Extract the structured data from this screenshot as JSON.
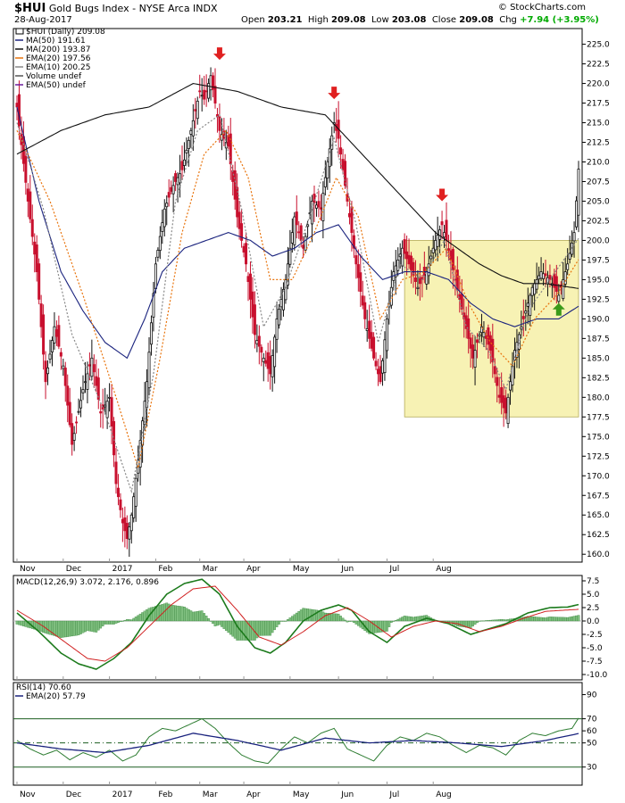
{
  "header": {
    "symbol": "$HUI",
    "name": "Gold Bugs Index - NYSE Arca INDX",
    "date": "28-Aug-2017",
    "open_label": "Open",
    "open": "203.21",
    "high_label": "High",
    "high": "209.08",
    "low_label": "Low",
    "low": "203.08",
    "close_label": "Close",
    "close": "209.08",
    "chg_label": "Chg",
    "chg": "+7.94 (+3.95%)",
    "copyright": "© StockCharts.com"
  },
  "colors": {
    "up": "#2e7d32",
    "down": "#c8102e",
    "ma50": "#1a237e",
    "ma200": "#111111",
    "ema20": "#e8730c",
    "ema10": "#888888",
    "highlight": "#f7f2b4",
    "arrow_red": "#e02020",
    "arrow_green": "#3a9a1a"
  },
  "chart_data": [
    {
      "type": "candlestick",
      "title": "$HUI (Daily) 209.08",
      "legend": [
        {
          "label": "$HUI (Daily) 209.08"
        },
        {
          "label": "MA(50) 191.61"
        },
        {
          "label": "MA(200) 193.87"
        },
        {
          "label": "EMA(20) 197.56"
        },
        {
          "label": "EMA(10) 200.25"
        },
        {
          "label": "Volume undef"
        },
        {
          "label": "EMA(50) undef"
        }
      ],
      "yticks": [
        160,
        162.5,
        165,
        167.5,
        170,
        172.5,
        175,
        177.5,
        180,
        182.5,
        185,
        187.5,
        190,
        192.5,
        195,
        197.5,
        200,
        202.5,
        205,
        207.5,
        210,
        212.5,
        215,
        217.5,
        220,
        222.5,
        225
      ],
      "ylim": [
        159,
        227
      ],
      "xticks": [
        "Nov",
        "Dec",
        "2017",
        "Feb",
        "Mar",
        "Apr",
        "May",
        "Jun",
        "Jul",
        "Aug"
      ],
      "close_keys": [
        [
          0,
          217
        ],
        [
          5,
          205
        ],
        [
          9,
          196
        ],
        [
          13,
          182
        ],
        [
          17,
          189
        ],
        [
          21,
          184
        ],
        [
          25,
          174
        ],
        [
          30,
          181
        ],
        [
          34,
          185
        ],
        [
          38,
          178
        ],
        [
          42,
          180
        ],
        [
          45,
          169
        ],
        [
          48,
          164
        ],
        [
          50,
          162
        ],
        [
          52,
          165
        ],
        [
          55,
          172
        ],
        [
          59,
          182
        ],
        [
          63,
          197
        ],
        [
          67,
          204
        ],
        [
          71,
          207
        ],
        [
          75,
          209
        ],
        [
          79,
          214
        ],
        [
          83,
          219
        ],
        [
          85,
          218
        ],
        [
          88,
          221
        ],
        [
          92,
          214
        ],
        [
          96,
          212
        ],
        [
          100,
          203
        ],
        [
          104,
          197
        ],
        [
          108,
          188
        ],
        [
          112,
          185
        ],
        [
          115,
          183
        ],
        [
          118,
          190
        ],
        [
          122,
          195
        ],
        [
          126,
          203
        ],
        [
          130,
          199
        ],
        [
          134,
          205
        ],
        [
          138,
          204
        ],
        [
          141,
          210
        ],
        [
          144,
          215
        ],
        [
          146,
          213
        ],
        [
          150,
          205
        ],
        [
          154,
          197
        ],
        [
          158,
          190
        ],
        [
          162,
          185
        ],
        [
          165,
          182
        ],
        [
          168,
          190
        ],
        [
          171,
          196
        ],
        [
          175,
          199
        ],
        [
          178,
          197
        ],
        [
          182,
          194
        ],
        [
          186,
          196
        ],
        [
          190,
          200
        ],
        [
          193,
          202
        ],
        [
          195,
          200
        ],
        [
          199,
          195
        ],
        [
          203,
          190
        ],
        [
          207,
          185
        ],
        [
          211,
          189
        ],
        [
          215,
          186
        ],
        [
          219,
          180
        ],
        [
          222,
          178
        ],
        [
          226,
          186
        ],
        [
          230,
          190
        ],
        [
          234,
          194
        ],
        [
          238,
          196
        ],
        [
          242,
          195
        ],
        [
          246,
          193
        ],
        [
          250,
          197
        ],
        [
          253,
          201
        ],
        [
          255,
          209.08
        ]
      ],
      "ma50_keys": [
        [
          0,
          217
        ],
        [
          10,
          205
        ],
        [
          20,
          196
        ],
        [
          30,
          191
        ],
        [
          40,
          187
        ],
        [
          50,
          185
        ],
        [
          58,
          190
        ],
        [
          66,
          196
        ],
        [
          76,
          199
        ],
        [
          86,
          200
        ],
        [
          96,
          201
        ],
        [
          106,
          200
        ],
        [
          116,
          198
        ],
        [
          126,
          199
        ],
        [
          136,
          201
        ],
        [
          146,
          202
        ],
        [
          156,
          198
        ],
        [
          166,
          195
        ],
        [
          176,
          196
        ],
        [
          186,
          196
        ],
        [
          196,
          195
        ],
        [
          206,
          192
        ],
        [
          216,
          190
        ],
        [
          226,
          189
        ],
        [
          236,
          190
        ],
        [
          246,
          190
        ],
        [
          255,
          191.61
        ]
      ],
      "ma200_keys": [
        [
          0,
          211
        ],
        [
          20,
          214
        ],
        [
          40,
          216
        ],
        [
          60,
          217
        ],
        [
          80,
          220
        ],
        [
          100,
          219
        ],
        [
          120,
          217
        ],
        [
          140,
          216
        ],
        [
          150,
          213
        ],
        [
          160,
          210
        ],
        [
          170,
          207
        ],
        [
          180,
          204
        ],
        [
          190,
          201
        ],
        [
          200,
          199
        ],
        [
          210,
          197
        ],
        [
          220,
          195.5
        ],
        [
          230,
          194.5
        ],
        [
          240,
          194.5
        ],
        [
          255,
          193.87
        ]
      ],
      "ema20_keys": [
        [
          0,
          214
        ],
        [
          15,
          205
        ],
        [
          30,
          193
        ],
        [
          45,
          180
        ],
        [
          55,
          171
        ],
        [
          65,
          185
        ],
        [
          75,
          201
        ],
        [
          85,
          211
        ],
        [
          95,
          214
        ],
        [
          105,
          208
        ],
        [
          115,
          195
        ],
        [
          125,
          195
        ],
        [
          135,
          201
        ],
        [
          145,
          208
        ],
        [
          155,
          203
        ],
        [
          165,
          190
        ],
        [
          175,
          195
        ],
        [
          185,
          196
        ],
        [
          195,
          199
        ],
        [
          205,
          192
        ],
        [
          215,
          187
        ],
        [
          225,
          184
        ],
        [
          235,
          190
        ],
        [
          245,
          193
        ],
        [
          255,
          197.56
        ]
      ],
      "ema10_keys": [
        [
          0,
          215
        ],
        [
          12,
          204
        ],
        [
          25,
          188
        ],
        [
          40,
          178
        ],
        [
          52,
          168
        ],
        [
          62,
          183
        ],
        [
          72,
          205
        ],
        [
          82,
          214
        ],
        [
          92,
          216
        ],
        [
          102,
          204
        ],
        [
          112,
          189
        ],
        [
          122,
          194
        ],
        [
          134,
          204
        ],
        [
          144,
          213
        ],
        [
          154,
          202
        ],
        [
          164,
          187
        ],
        [
          174,
          197
        ],
        [
          184,
          195
        ],
        [
          194,
          200
        ],
        [
          204,
          189
        ],
        [
          214,
          186
        ],
        [
          222,
          181
        ],
        [
          232,
          191
        ],
        [
          242,
          195
        ],
        [
          255,
          200.25
        ]
      ],
      "annotations": [
        {
          "type": "highlight-box",
          "x": [
            176,
            255
          ],
          "y": [
            177.5,
            200
          ]
        },
        {
          "type": "arrow-down",
          "x": 92,
          "y": 223
        },
        {
          "type": "arrow-down",
          "x": 144,
          "y": 218
        },
        {
          "type": "arrow-down",
          "x": 193,
          "y": 205
        },
        {
          "type": "arrow-up",
          "x": 246,
          "y": 192
        }
      ]
    },
    {
      "type": "macd",
      "title": "MACD(12,26,9) 3.072, 2.176, 0.896",
      "legend": [
        {
          "label": "MACD(12,26,9) 3.072, 2.176, 0.896"
        }
      ],
      "yticks": [
        -10.0,
        -7.5,
        -5.0,
        -2.5,
        0.0,
        2.5,
        5.0,
        7.5
      ],
      "ylim": [
        -11,
        8.5
      ],
      "macd_keys": [
        [
          0,
          1.5
        ],
        [
          10,
          -2
        ],
        [
          20,
          -6
        ],
        [
          28,
          -8
        ],
        [
          36,
          -9
        ],
        [
          44,
          -7
        ],
        [
          52,
          -4
        ],
        [
          60,
          1
        ],
        [
          68,
          5
        ],
        [
          76,
          7
        ],
        [
          84,
          7.8
        ],
        [
          92,
          5
        ],
        [
          100,
          -1
        ],
        [
          108,
          -5
        ],
        [
          115,
          -6
        ],
        [
          122,
          -4
        ],
        [
          130,
          0
        ],
        [
          138,
          2
        ],
        [
          146,
          3
        ],
        [
          152,
          2
        ],
        [
          160,
          -2
        ],
        [
          168,
          -4
        ],
        [
          176,
          -1
        ],
        [
          186,
          0.5
        ],
        [
          196,
          -0.5
        ],
        [
          206,
          -2.5
        ],
        [
          214,
          -1.5
        ],
        [
          222,
          -0.5
        ],
        [
          232,
          1.5
        ],
        [
          242,
          2.5
        ],
        [
          250,
          2.6
        ],
        [
          255,
          3.072
        ]
      ],
      "signal_keys": [
        [
          0,
          2
        ],
        [
          12,
          -1
        ],
        [
          22,
          -4
        ],
        [
          32,
          -7
        ],
        [
          40,
          -7.5
        ],
        [
          50,
          -5
        ],
        [
          60,
          -1
        ],
        [
          70,
          3
        ],
        [
          80,
          6
        ],
        [
          90,
          6.5
        ],
        [
          100,
          2
        ],
        [
          110,
          -3
        ],
        [
          120,
          -4.5
        ],
        [
          130,
          -2
        ],
        [
          140,
          1
        ],
        [
          150,
          2.5
        ],
        [
          160,
          0
        ],
        [
          170,
          -3
        ],
        [
          180,
          -1
        ],
        [
          190,
          0
        ],
        [
          200,
          -0.5
        ],
        [
          210,
          -2
        ],
        [
          220,
          -1
        ],
        [
          230,
          0.5
        ],
        [
          240,
          1.8
        ],
        [
          255,
          2.176
        ]
      ]
    },
    {
      "type": "rsi",
      "title": "RSI(14) 70.60",
      "legend": [
        {
          "label": "RSI(14) 70.60"
        },
        {
          "label": "EMA(20) 57.79"
        }
      ],
      "yticks": [
        30,
        50,
        60,
        70,
        90
      ],
      "ylim": [
        15,
        100
      ],
      "rsi_keys": [
        [
          0,
          52
        ],
        [
          6,
          45
        ],
        [
          12,
          40
        ],
        [
          18,
          44
        ],
        [
          24,
          36
        ],
        [
          30,
          42
        ],
        [
          36,
          38
        ],
        [
          42,
          44
        ],
        [
          48,
          35
        ],
        [
          54,
          40
        ],
        [
          60,
          55
        ],
        [
          66,
          62
        ],
        [
          72,
          60
        ],
        [
          78,
          65
        ],
        [
          84,
          70
        ],
        [
          90,
          62
        ],
        [
          96,
          50
        ],
        [
          102,
          40
        ],
        [
          108,
          35
        ],
        [
          114,
          33
        ],
        [
          120,
          45
        ],
        [
          126,
          55
        ],
        [
          132,
          50
        ],
        [
          138,
          58
        ],
        [
          144,
          62
        ],
        [
          150,
          45
        ],
        [
          156,
          40
        ],
        [
          162,
          35
        ],
        [
          168,
          48
        ],
        [
          174,
          55
        ],
        [
          180,
          52
        ],
        [
          186,
          58
        ],
        [
          192,
          55
        ],
        [
          198,
          48
        ],
        [
          204,
          42
        ],
        [
          210,
          48
        ],
        [
          216,
          46
        ],
        [
          222,
          40
        ],
        [
          228,
          52
        ],
        [
          234,
          58
        ],
        [
          240,
          56
        ],
        [
          246,
          60
        ],
        [
          252,
          62
        ],
        [
          255,
          70.6
        ]
      ],
      "ema_keys": [
        [
          0,
          50
        ],
        [
          20,
          45
        ],
        [
          40,
          42
        ],
        [
          60,
          48
        ],
        [
          80,
          58
        ],
        [
          100,
          52
        ],
        [
          120,
          44
        ],
        [
          140,
          54
        ],
        [
          160,
          50
        ],
        [
          180,
          52
        ],
        [
          200,
          50
        ],
        [
          220,
          47
        ],
        [
          240,
          52
        ],
        [
          255,
          57.79
        ]
      ]
    }
  ]
}
